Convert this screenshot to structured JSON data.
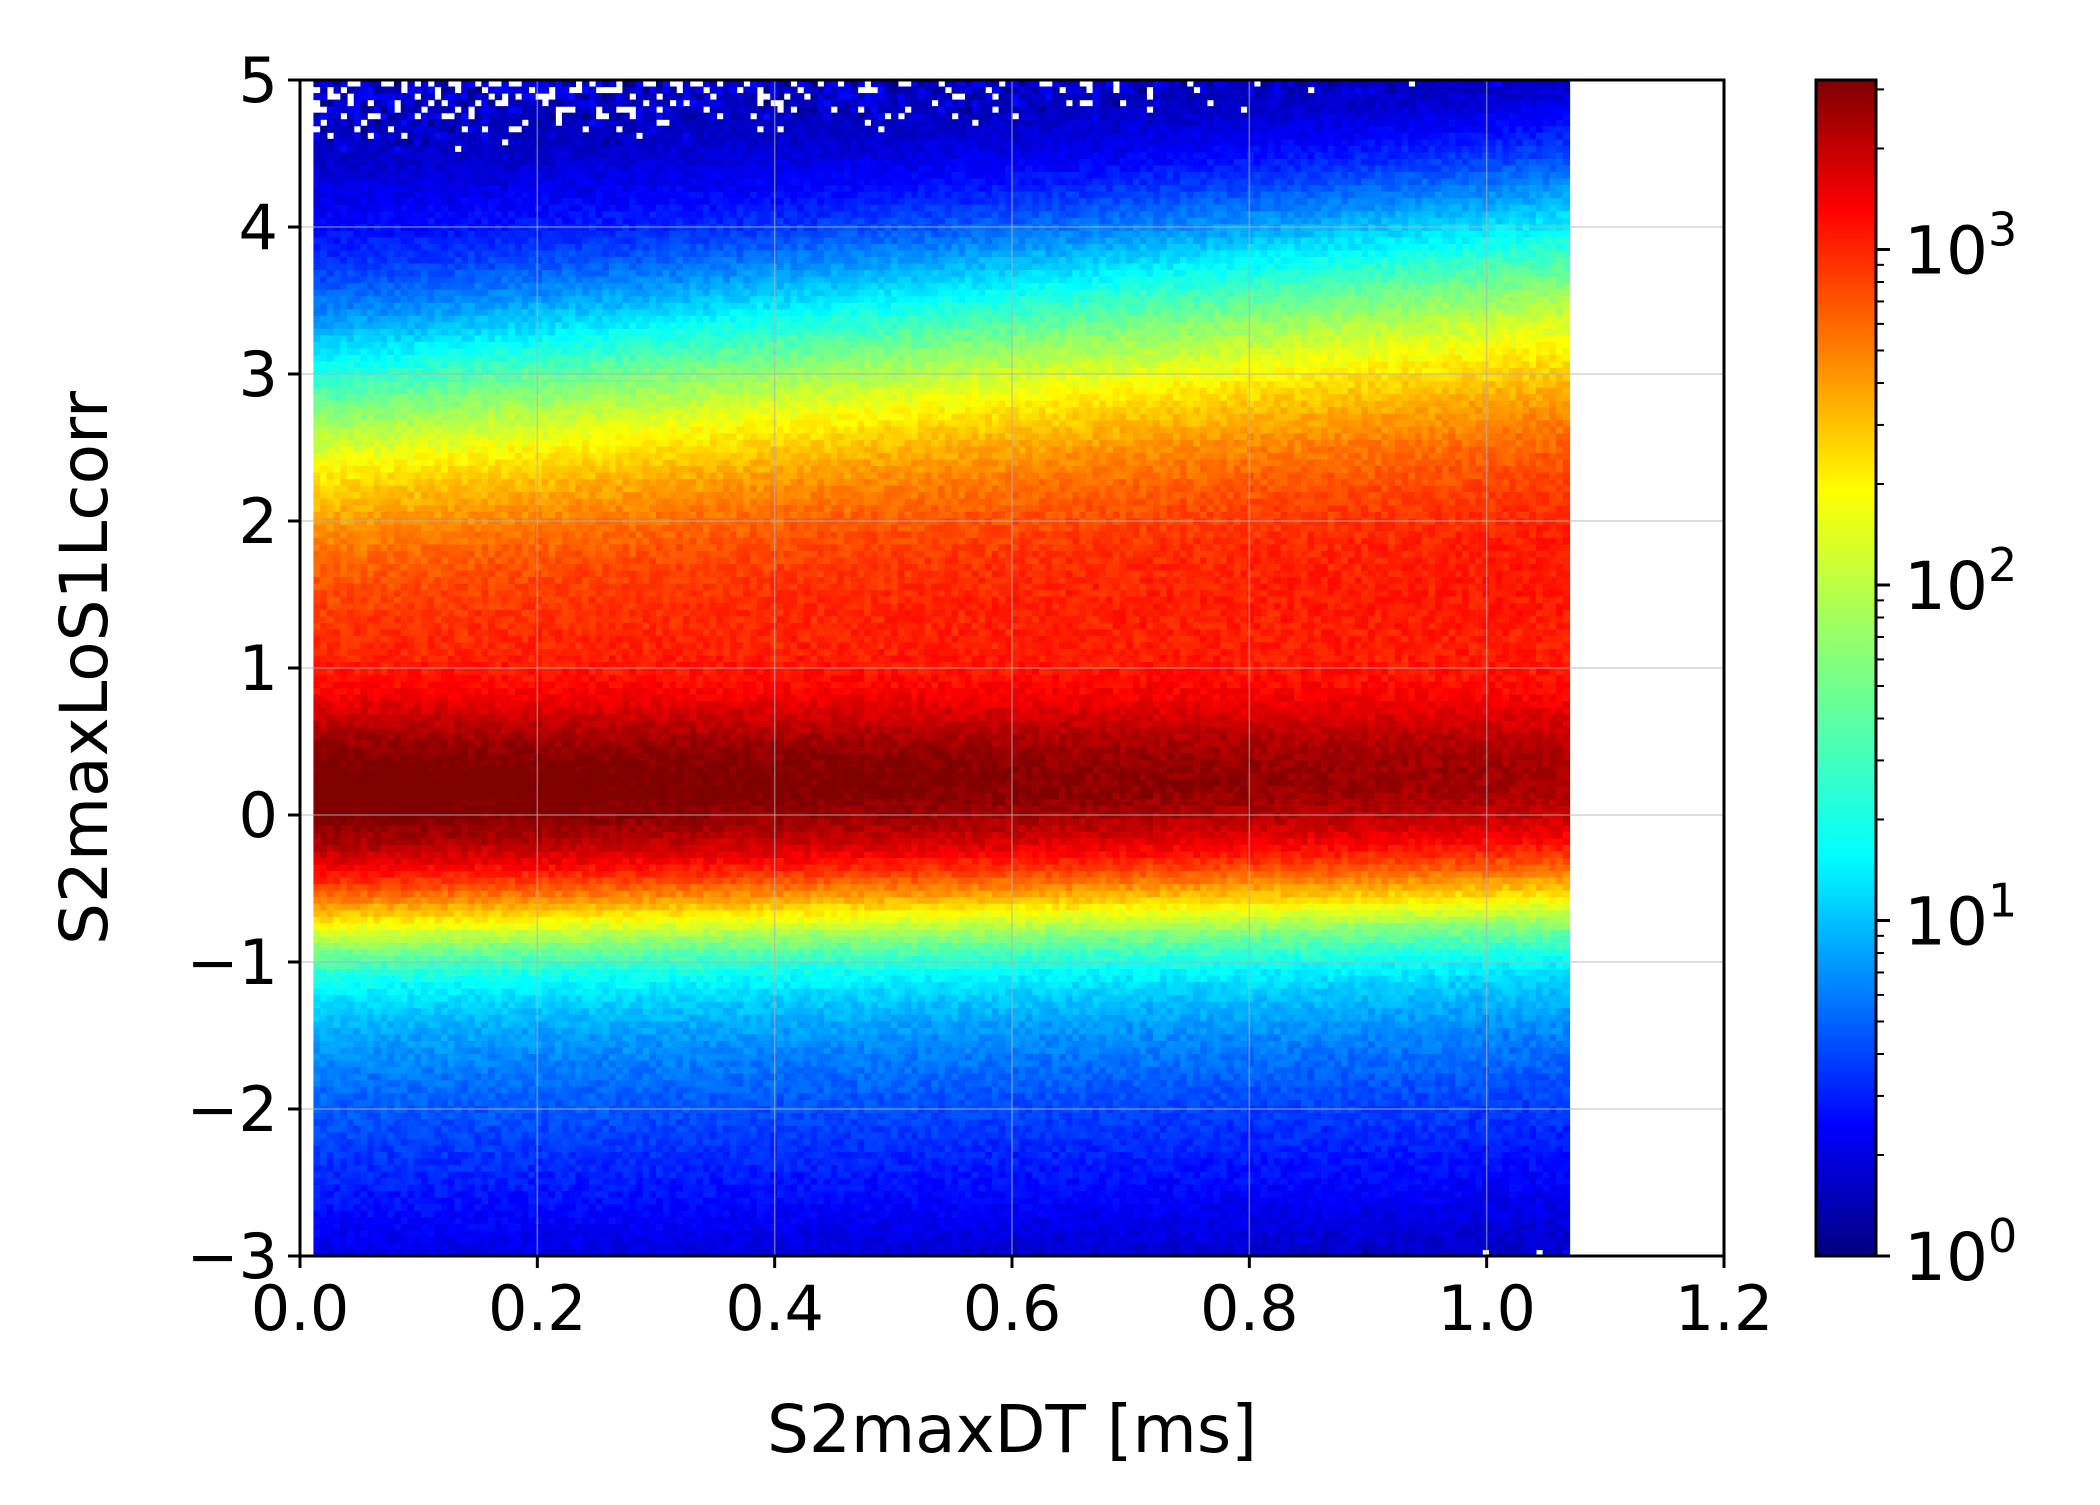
{
  "chart_data": {
    "type": "heatmap",
    "title": "",
    "xlabel": "S2maxDT [ms]",
    "ylabel": "S2maxLoS1Lcorr",
    "xlim": [
      0.0,
      1.2
    ],
    "ylim": [
      -3,
      5
    ],
    "x_ticks": [
      "0.0",
      "0.2",
      "0.4",
      "0.6",
      "0.8",
      "1.0",
      "1.2"
    ],
    "x_tick_values": [
      0.0,
      0.2,
      0.4,
      0.6,
      0.8,
      1.0,
      1.2
    ],
    "y_ticks": [
      "5",
      "4",
      "3",
      "2",
      "1",
      "0",
      "−1",
      "−2",
      "−3"
    ],
    "y_tick_values": [
      5,
      4,
      3,
      2,
      1,
      0,
      -1,
      -2,
      -3
    ],
    "grid": true,
    "colormap": "jet",
    "color_scale": "log",
    "colorbar": {
      "range": [
        1,
        3200
      ],
      "ticks": [
        {
          "value": 1,
          "base": "10",
          "exp": "0"
        },
        {
          "value": 10,
          "base": "10",
          "exp": "1"
        },
        {
          "value": 100,
          "base": "10",
          "exp": "2"
        },
        {
          "value": 1000,
          "base": "10",
          "exp": "3"
        }
      ]
    },
    "data_extent": {
      "x": [
        0.012,
        1.07
      ],
      "y": [
        -2.45,
        4.95
      ]
    },
    "bands": [
      {
        "description": "primary dense band",
        "x": [
          0.012,
          1.06
        ],
        "y_center_start": 0.15,
        "y_center_end": 0.25,
        "peak_count": 3000
      },
      {
        "description": "secondary broad band",
        "x": [
          0.012,
          1.06
        ],
        "y_center_start": 1.05,
        "y_center_end": 1.6,
        "peak_count": 900
      }
    ]
  }
}
